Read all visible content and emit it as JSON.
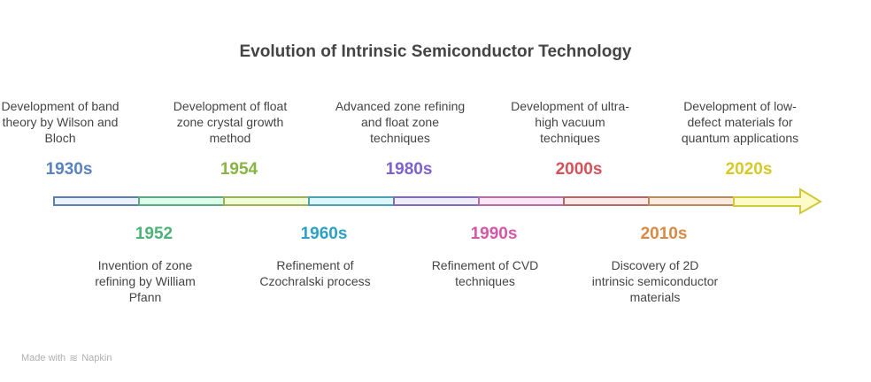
{
  "title": "Evolution of Intrinsic Semiconductor Technology",
  "events": [
    {
      "year": "1930s",
      "description": "Development of band theory by Wilson and Bloch",
      "position": "top",
      "color": "#5b82c0",
      "fill": "#eaf2fe",
      "stroke": "#5f7fa8"
    },
    {
      "year": "1952",
      "description": "Invention of zone refining by William Pfann",
      "position": "bottom",
      "color": "#4cb377",
      "fill": "#dcfde9",
      "stroke": "#5fa882"
    },
    {
      "year": "1954",
      "description": "Development of float zone crystal growth method",
      "position": "top",
      "color": "#88b541",
      "fill": "#f1fdd5",
      "stroke": "#9bb25a"
    },
    {
      "year": "1960s",
      "description": "Refinement of Czochralski process",
      "position": "bottom",
      "color": "#2ea0c6",
      "fill": "#dcf7fd",
      "stroke": "#4ea0b3"
    },
    {
      "year": "1980s",
      "description": "Advanced zone refining and float zone techniques",
      "position": "top",
      "color": "#7d62cf",
      "fill": "#efecfd",
      "stroke": "#7f6fb0"
    },
    {
      "year": "1990s",
      "description": "Refinement of CVD techniques",
      "position": "bottom",
      "color": "#d558a8",
      "fill": "#fde6f6",
      "stroke": "#b66fa6"
    },
    {
      "year": "2000s",
      "description": "Development of ultra-high vacuum techniques",
      "position": "top",
      "color": "#d2545a",
      "fill": "#fde6e6",
      "stroke": "#b06a66"
    },
    {
      "year": "2010s",
      "description": "Discovery of 2D intrinsic semiconductor materials",
      "position": "bottom",
      "color": "#d98a45",
      "fill": "#fdeade",
      "stroke": "#b78a5f"
    },
    {
      "year": "2020s",
      "description": "Development of low-defect materials for quantum applications",
      "position": "top",
      "color": "#d6c92a",
      "fill": "#fdfbc8",
      "stroke": "#d3c83a"
    }
  ],
  "footer": {
    "made_with": "Made with",
    "brand": "Napkin"
  }
}
